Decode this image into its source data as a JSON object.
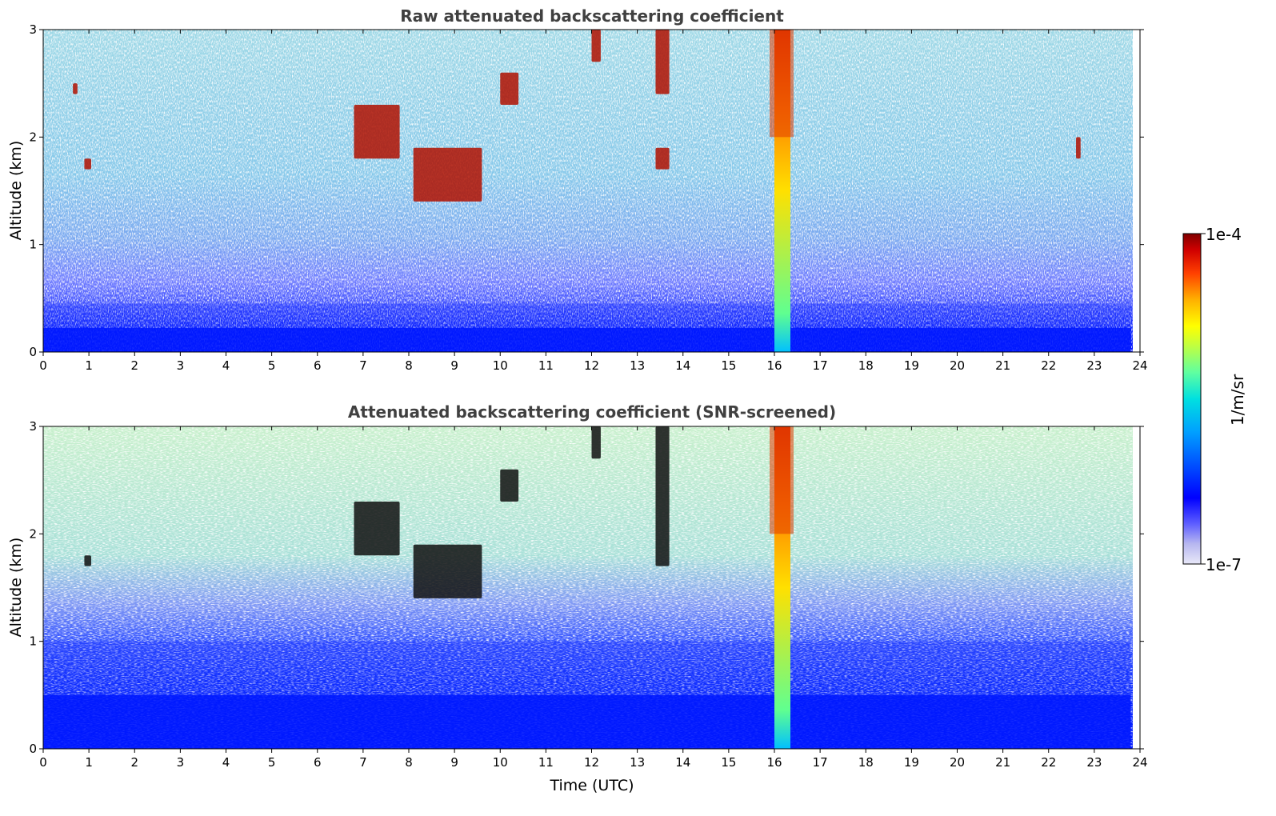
{
  "chart_data": [
    {
      "type": "heatmap",
      "title": "Raw attenuated backscattering coefficient",
      "xlabel": "",
      "ylabel": "Altitude (km)",
      "xlim": [
        0,
        24
      ],
      "ylim": [
        0,
        3
      ],
      "x_ticks": [
        "0",
        "1",
        "2",
        "3",
        "4",
        "5",
        "6",
        "7",
        "8",
        "9",
        "10",
        "11",
        "12",
        "13",
        "14",
        "15",
        "16",
        "17",
        "18",
        "19",
        "20",
        "21",
        "22",
        "23",
        "24"
      ],
      "y_ticks": [
        "0",
        "1",
        "2",
        "3"
      ],
      "colorscale": "jet",
      "value_range": [
        "1e-7",
        "1e-4"
      ],
      "features": [
        {
          "kind": "boundary_layer",
          "x": [
            0,
            23.8
          ],
          "top_km": 0.45,
          "level": "low"
        },
        {
          "kind": "rain_column",
          "x": [
            16.0,
            16.35
          ],
          "altitude_km": [
            0,
            3.0
          ],
          "level": "high"
        },
        {
          "kind": "cloud",
          "x": [
            0.9,
            1.05
          ],
          "altitude_km": [
            1.7,
            1.8
          ],
          "level": "high"
        },
        {
          "kind": "cloud",
          "x": [
            0.65,
            0.75
          ],
          "altitude_km": [
            2.4,
            2.5
          ],
          "level": "high"
        },
        {
          "kind": "cloud",
          "x": [
            6.8,
            7.8
          ],
          "altitude_km": [
            1.8,
            2.3
          ],
          "level": "high"
        },
        {
          "kind": "cloud",
          "x": [
            8.1,
            9.6
          ],
          "altitude_km": [
            1.4,
            1.9
          ],
          "level": "high"
        },
        {
          "kind": "cloud",
          "x": [
            10.0,
            10.4
          ],
          "altitude_km": [
            2.3,
            2.6
          ],
          "level": "high"
        },
        {
          "kind": "cloud",
          "x": [
            12.0,
            12.2
          ],
          "altitude_km": [
            2.7,
            3.0
          ],
          "level": "high"
        },
        {
          "kind": "cloud",
          "x": [
            13.4,
            13.7
          ],
          "altitude_km": [
            2.4,
            3.0
          ],
          "level": "high"
        },
        {
          "kind": "cloud",
          "x": [
            13.4,
            13.7
          ],
          "altitude_km": [
            1.7,
            1.9
          ],
          "level": "high"
        },
        {
          "kind": "cloud",
          "x": [
            22.6,
            22.7
          ],
          "altitude_km": [
            1.8,
            2.0
          ],
          "level": "high"
        }
      ]
    },
    {
      "type": "heatmap",
      "title": "Attenuated backscattering coefficient (SNR-screened)",
      "xlabel": "Time (UTC)",
      "ylabel": "Altitude (km)",
      "xlim": [
        0,
        24
      ],
      "ylim": [
        0,
        3
      ],
      "x_ticks": [
        "0",
        "1",
        "2",
        "3",
        "4",
        "5",
        "6",
        "7",
        "8",
        "9",
        "10",
        "11",
        "12",
        "13",
        "14",
        "15",
        "16",
        "17",
        "18",
        "19",
        "20",
        "21",
        "22",
        "23",
        "24"
      ],
      "y_ticks": [
        "0",
        "1",
        "2",
        "3"
      ],
      "colorscale": "jet",
      "value_range": [
        "1e-7",
        "1e-4"
      ],
      "features": [
        {
          "kind": "boundary_layer",
          "x": [
            0,
            23.8
          ],
          "top_km": 1.0,
          "level": "low"
        },
        {
          "kind": "rain_column",
          "x": [
            16.0,
            16.35
          ],
          "altitude_km": [
            0,
            3.0
          ],
          "level": "high"
        },
        {
          "kind": "cloud",
          "x": [
            0.9,
            1.05
          ],
          "altitude_km": [
            1.7,
            1.8
          ],
          "level": "saturated"
        },
        {
          "kind": "cloud",
          "x": [
            6.8,
            7.8
          ],
          "altitude_km": [
            1.8,
            2.3
          ],
          "level": "saturated"
        },
        {
          "kind": "cloud",
          "x": [
            8.1,
            9.6
          ],
          "altitude_km": [
            1.4,
            1.9
          ],
          "level": "saturated"
        },
        {
          "kind": "cloud",
          "x": [
            10.0,
            10.4
          ],
          "altitude_km": [
            2.3,
            2.6
          ],
          "level": "saturated"
        },
        {
          "kind": "cloud",
          "x": [
            12.0,
            12.2
          ],
          "altitude_km": [
            2.7,
            3.0
          ],
          "level": "saturated"
        },
        {
          "kind": "cloud",
          "x": [
            13.4,
            13.7
          ],
          "altitude_km": [
            1.7,
            3.0
          ],
          "level": "saturated"
        }
      ]
    }
  ],
  "colorbar": {
    "label": "1/m/sr",
    "max_label": "1e-4",
    "min_label": "1e-7",
    "colors": [
      "#e8e8f8",
      "#b8b8f0",
      "#6060ff",
      "#0000ff",
      "#0040ff",
      "#0080ff",
      "#00c0ff",
      "#40e0c0",
      "#80ff80",
      "#c0ff40",
      "#ffff00",
      "#ffc000",
      "#ff8000",
      "#ff4000",
      "#e00000",
      "#800000"
    ]
  }
}
